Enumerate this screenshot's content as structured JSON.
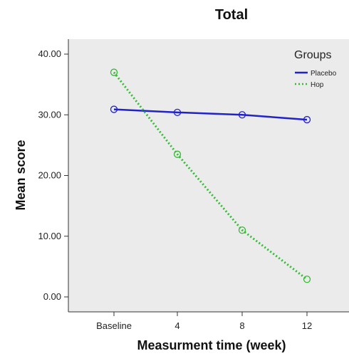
{
  "chart_data": {
    "type": "line",
    "title": "Total",
    "xlabel": "Measurment time (week)",
    "ylabel": "Mean score",
    "categories": [
      "Baseline",
      "4",
      "8",
      "12"
    ],
    "ylim": [
      0,
      40
    ],
    "yticks": [
      "0.00",
      "10.00",
      "20.00",
      "30.00",
      "40.00"
    ],
    "grid": false,
    "legend": {
      "title": "Groups",
      "placement": "top-right"
    },
    "series": [
      {
        "name": "Placebo",
        "values": [
          30.9,
          30.4,
          30.0,
          29.2
        ],
        "color": "#2222cc",
        "style": "solid"
      },
      {
        "name": "Hop",
        "values": [
          37.0,
          23.5,
          11.0,
          2.9
        ],
        "color": "#33bb33",
        "style": "dotted"
      }
    ]
  }
}
